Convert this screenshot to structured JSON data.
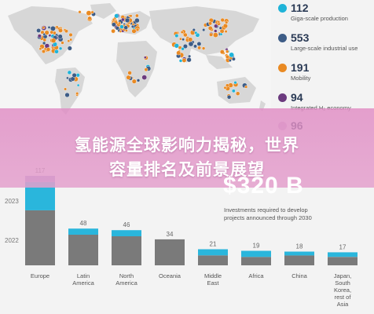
{
  "legend": [
    {
      "value": "112",
      "label": "Giga-scale production",
      "color": "#1fb3d8"
    },
    {
      "value": "553",
      "label": "Large-scale industrial use",
      "color": "#3d5c86"
    },
    {
      "value": "191",
      "label": "Mobility",
      "color": "#e98a23"
    },
    {
      "value": "94",
      "label": "Integrated H₂ economy",
      "color": "#6b3a7e"
    },
    {
      "value": "96",
      "label": "",
      "color": "#d2b7d6"
    }
  ],
  "title": {
    "line1": "氢能源全球影响力揭秘，世界",
    "line2": "容量排名及前景展望"
  },
  "investment": {
    "amount": "$320 B",
    "text_line1": "Investments required to develop",
    "text_line2": "projects announced through 2030"
  },
  "years": {
    "y2023": "2023",
    "y2022": "2022"
  },
  "chart_data": {
    "type": "bar",
    "categories": [
      "Europe",
      "Latin America",
      "North America",
      "Oceania",
      "Middle East",
      "Africa",
      "China",
      "Japan, South Korea, rest of Asia"
    ],
    "category_lines": [
      [
        "Europe"
      ],
      [
        "Latin",
        "America"
      ],
      [
        "North",
        "America"
      ],
      [
        "Oceania"
      ],
      [
        "Middle",
        "East"
      ],
      [
        "Africa"
      ],
      [
        "China"
      ],
      [
        "Japan,",
        "South",
        "Korea,",
        "rest of",
        "Asia"
      ]
    ],
    "totals": [
      117,
      48,
      46,
      34,
      21,
      19,
      18,
      17
    ],
    "series": [
      {
        "name": "2022",
        "color": "#7a7a7a",
        "values": [
          72,
          40,
          38,
          34,
          13,
          11,
          13,
          11
        ]
      },
      {
        "name": "2023",
        "color": "#2ab6dc",
        "values": [
          37,
          8,
          8,
          0,
          8,
          8,
          5,
          6
        ]
      },
      {
        "name": "",
        "color": "#9c8fcf",
        "values": [
          8,
          0,
          0,
          0,
          0,
          0,
          0,
          0
        ]
      }
    ],
    "ylim": [
      0,
      117
    ]
  }
}
